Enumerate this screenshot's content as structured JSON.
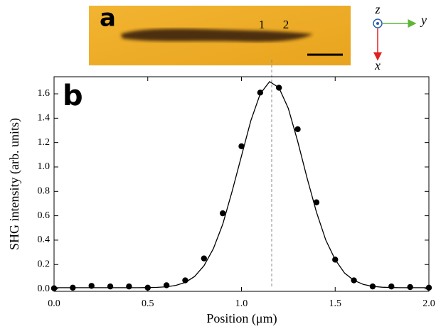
{
  "panel_a": {
    "label": "a",
    "markers": [
      "1",
      "2"
    ]
  },
  "axes_icon": {
    "z": "z",
    "y": "y",
    "x": "x"
  },
  "chart_data": {
    "type": "scatter",
    "panel_label": "b",
    "xlabel": "Position (μm)",
    "ylabel": "SHG intensity (arb. units)",
    "xlim": [
      0,
      2
    ],
    "ylim": [
      -0.02,
      1.74
    ],
    "xticks": [
      {
        "value": 0,
        "label": "0.0"
      },
      0.5,
      {
        "value": 1,
        "label": "1.0"
      },
      1.5,
      {
        "value": 2,
        "label": "2.0"
      }
    ],
    "yticks": [
      {
        "value": 0,
        "label": "0.0"
      },
      0.2,
      0.4,
      0.6,
      0.8,
      {
        "value": 1,
        "label": "1.0"
      },
      1.2,
      1.4,
      1.6
    ],
    "series": [
      {
        "style": "markers",
        "color": "#000000",
        "x": [
          0,
          0.1,
          0.2,
          0.3,
          0.4,
          0.5,
          0.6,
          0.7,
          0.8,
          0.9,
          1.0,
          1.1,
          1.2,
          1.3,
          1.4,
          1.5,
          1.6,
          1.7,
          1.8,
          1.9,
          2.0
        ],
        "values": [
          0.005,
          0.01,
          0.025,
          0.02,
          0.02,
          0.01,
          0.03,
          0.07,
          0.25,
          0.62,
          1.17,
          1.61,
          1.65,
          1.31,
          0.71,
          0.24,
          0.07,
          0.02,
          0.02,
          0.015,
          0.01
        ]
      },
      {
        "style": "line",
        "color": "#000000",
        "x": [
          0,
          0.45,
          0.5,
          0.55,
          0.6,
          0.65,
          0.7,
          0.75,
          0.8,
          0.85,
          0.9,
          0.95,
          1.0,
          1.05,
          1.1,
          1.15,
          1.2,
          1.25,
          1.3,
          1.35,
          1.4,
          1.45,
          1.5,
          1.55,
          1.6,
          1.65,
          1.7,
          1.75,
          1.8,
          1.85,
          2.0
        ],
        "values": [
          0.01,
          0.01,
          0.011,
          0.013,
          0.017,
          0.029,
          0.053,
          0.102,
          0.19,
          0.33,
          0.53,
          0.8,
          1.09,
          1.38,
          1.6,
          1.7,
          1.65,
          1.48,
          1.21,
          0.91,
          0.63,
          0.4,
          0.24,
          0.13,
          0.07,
          0.037,
          0.021,
          0.014,
          0.011,
          0.01,
          0.01
        ]
      }
    ]
  }
}
